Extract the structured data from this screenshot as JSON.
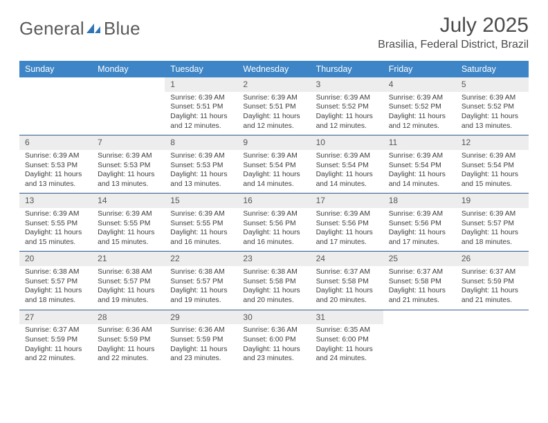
{
  "brand": {
    "word1": "General",
    "word2": "Blue"
  },
  "title": "July 2025",
  "subtitle": "Brasilia, Federal District, Brazil",
  "colors": {
    "header_bg": "#3d85c6",
    "header_fg": "#ffffff",
    "daynum_bg": "#ededed",
    "week_divider": "#2f5d8a",
    "brand_gray": "#5a5a5a",
    "brand_blue": "#2f75b5"
  },
  "dayHeaders": [
    "Sunday",
    "Monday",
    "Tuesday",
    "Wednesday",
    "Thursday",
    "Friday",
    "Saturday"
  ],
  "weeks": [
    [
      null,
      null,
      {
        "n": "1",
        "sr": "6:39 AM",
        "ss": "5:51 PM",
        "dl": "11 hours and 12 minutes."
      },
      {
        "n": "2",
        "sr": "6:39 AM",
        "ss": "5:51 PM",
        "dl": "11 hours and 12 minutes."
      },
      {
        "n": "3",
        "sr": "6:39 AM",
        "ss": "5:52 PM",
        "dl": "11 hours and 12 minutes."
      },
      {
        "n": "4",
        "sr": "6:39 AM",
        "ss": "5:52 PM",
        "dl": "11 hours and 12 minutes."
      },
      {
        "n": "5",
        "sr": "6:39 AM",
        "ss": "5:52 PM",
        "dl": "11 hours and 13 minutes."
      }
    ],
    [
      {
        "n": "6",
        "sr": "6:39 AM",
        "ss": "5:53 PM",
        "dl": "11 hours and 13 minutes."
      },
      {
        "n": "7",
        "sr": "6:39 AM",
        "ss": "5:53 PM",
        "dl": "11 hours and 13 minutes."
      },
      {
        "n": "8",
        "sr": "6:39 AM",
        "ss": "5:53 PM",
        "dl": "11 hours and 13 minutes."
      },
      {
        "n": "9",
        "sr": "6:39 AM",
        "ss": "5:54 PM",
        "dl": "11 hours and 14 minutes."
      },
      {
        "n": "10",
        "sr": "6:39 AM",
        "ss": "5:54 PM",
        "dl": "11 hours and 14 minutes."
      },
      {
        "n": "11",
        "sr": "6:39 AM",
        "ss": "5:54 PM",
        "dl": "11 hours and 14 minutes."
      },
      {
        "n": "12",
        "sr": "6:39 AM",
        "ss": "5:54 PM",
        "dl": "11 hours and 15 minutes."
      }
    ],
    [
      {
        "n": "13",
        "sr": "6:39 AM",
        "ss": "5:55 PM",
        "dl": "11 hours and 15 minutes."
      },
      {
        "n": "14",
        "sr": "6:39 AM",
        "ss": "5:55 PM",
        "dl": "11 hours and 15 minutes."
      },
      {
        "n": "15",
        "sr": "6:39 AM",
        "ss": "5:55 PM",
        "dl": "11 hours and 16 minutes."
      },
      {
        "n": "16",
        "sr": "6:39 AM",
        "ss": "5:56 PM",
        "dl": "11 hours and 16 minutes."
      },
      {
        "n": "17",
        "sr": "6:39 AM",
        "ss": "5:56 PM",
        "dl": "11 hours and 17 minutes."
      },
      {
        "n": "18",
        "sr": "6:39 AM",
        "ss": "5:56 PM",
        "dl": "11 hours and 17 minutes."
      },
      {
        "n": "19",
        "sr": "6:39 AM",
        "ss": "5:57 PM",
        "dl": "11 hours and 18 minutes."
      }
    ],
    [
      {
        "n": "20",
        "sr": "6:38 AM",
        "ss": "5:57 PM",
        "dl": "11 hours and 18 minutes."
      },
      {
        "n": "21",
        "sr": "6:38 AM",
        "ss": "5:57 PM",
        "dl": "11 hours and 19 minutes."
      },
      {
        "n": "22",
        "sr": "6:38 AM",
        "ss": "5:57 PM",
        "dl": "11 hours and 19 minutes."
      },
      {
        "n": "23",
        "sr": "6:38 AM",
        "ss": "5:58 PM",
        "dl": "11 hours and 20 minutes."
      },
      {
        "n": "24",
        "sr": "6:37 AM",
        "ss": "5:58 PM",
        "dl": "11 hours and 20 minutes."
      },
      {
        "n": "25",
        "sr": "6:37 AM",
        "ss": "5:58 PM",
        "dl": "11 hours and 21 minutes."
      },
      {
        "n": "26",
        "sr": "6:37 AM",
        "ss": "5:59 PM",
        "dl": "11 hours and 21 minutes."
      }
    ],
    [
      {
        "n": "27",
        "sr": "6:37 AM",
        "ss": "5:59 PM",
        "dl": "11 hours and 22 minutes."
      },
      {
        "n": "28",
        "sr": "6:36 AM",
        "ss": "5:59 PM",
        "dl": "11 hours and 22 minutes."
      },
      {
        "n": "29",
        "sr": "6:36 AM",
        "ss": "5:59 PM",
        "dl": "11 hours and 23 minutes."
      },
      {
        "n": "30",
        "sr": "6:36 AM",
        "ss": "6:00 PM",
        "dl": "11 hours and 23 minutes."
      },
      {
        "n": "31",
        "sr": "6:35 AM",
        "ss": "6:00 PM",
        "dl": "11 hours and 24 minutes."
      },
      null,
      null
    ]
  ],
  "labels": {
    "sunrise": "Sunrise:",
    "sunset": "Sunset:",
    "daylight": "Daylight:"
  }
}
